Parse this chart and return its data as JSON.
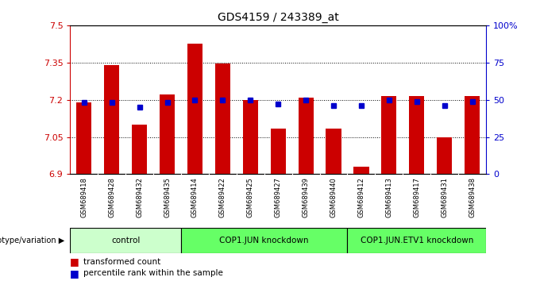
{
  "title": "GDS4159 / 243389_at",
  "samples": [
    "GSM689418",
    "GSM689428",
    "GSM689432",
    "GSM689435",
    "GSM689414",
    "GSM689422",
    "GSM689425",
    "GSM689427",
    "GSM689439",
    "GSM689440",
    "GSM689412",
    "GSM689413",
    "GSM689417",
    "GSM689431",
    "GSM689438"
  ],
  "transformed_count": [
    7.19,
    7.34,
    7.1,
    7.22,
    7.425,
    7.345,
    7.2,
    7.085,
    7.21,
    7.085,
    6.93,
    7.215,
    7.215,
    7.05,
    7.215
  ],
  "percentile_rank": [
    48,
    48,
    45,
    48,
    50,
    50,
    50,
    47,
    50,
    46,
    46,
    50,
    49,
    46,
    49
  ],
  "groups": [
    {
      "label": "control",
      "start": 0,
      "end": 4,
      "color": "#ccffcc"
    },
    {
      "label": "COP1.JUN knockdown",
      "start": 4,
      "end": 10,
      "color": "#66ff66"
    },
    {
      "label": "COP1.JUN.ETV1 knockdown",
      "start": 10,
      "end": 15,
      "color": "#66ff66"
    }
  ],
  "ylim_left": [
    6.9,
    7.5
  ],
  "ylim_right": [
    0,
    100
  ],
  "bar_color": "#cc0000",
  "dot_color": "#0000cc",
  "background_color": "#ffffff",
  "yticks_left": [
    6.9,
    7.05,
    7.2,
    7.35,
    7.5
  ],
  "yticks_right": [
    0,
    25,
    50,
    75,
    100
  ],
  "left_tick_color": "#cc0000",
  "right_tick_color": "#0000cc"
}
